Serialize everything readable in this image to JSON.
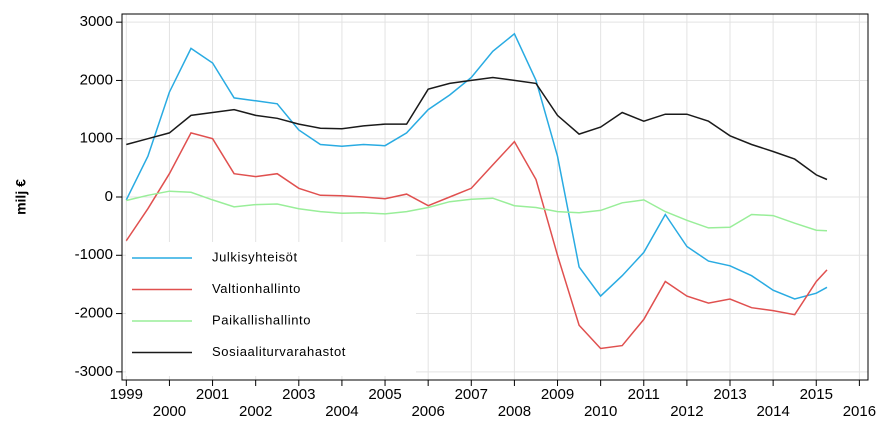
{
  "chart_data": {
    "type": "line",
    "ylabel": "milj €",
    "x": [
      1999,
      1999.5,
      2000,
      2000.5,
      2001,
      2001.5,
      2002,
      2002.5,
      2003,
      2003.5,
      2004,
      2004.5,
      2005,
      2005.5,
      2006,
      2006.5,
      2007,
      2007.5,
      2008,
      2008.5,
      2009,
      2009.5,
      2010,
      2010.5,
      2011,
      2011.5,
      2012,
      2012.5,
      2013,
      2013.5,
      2014,
      2014.5,
      2015,
      2015.25
    ],
    "series": [
      {
        "name": "Julkisyhteisöt",
        "color": "#29abe2",
        "values": [
          -50,
          700,
          1800,
          2550,
          2300,
          1700,
          1650,
          1600,
          1150,
          900,
          870,
          900,
          880,
          1100,
          1500,
          1750,
          2050,
          2500,
          2800,
          2000,
          700,
          -1200,
          -1700,
          -1350,
          -950,
          -300,
          -850,
          -1100,
          -1180,
          -1350,
          -1600,
          -1750,
          -1650,
          -1550
        ]
      },
      {
        "name": "Valtionhallinto",
        "color": "#e0504f",
        "values": [
          -750,
          -200,
          400,
          1100,
          1000,
          400,
          350,
          400,
          150,
          30,
          20,
          0,
          -30,
          50,
          -150,
          0,
          150,
          550,
          950,
          300,
          -1000,
          -2200,
          -2600,
          -2550,
          -2100,
          -1450,
          -1700,
          -1820,
          -1750,
          -1900,
          -1950,
          -2020,
          -1450,
          -1250
        ]
      },
      {
        "name": "Paikallishallinto",
        "color": "#99ee99",
        "values": [
          -60,
          30,
          100,
          80,
          -50,
          -170,
          -130,
          -120,
          -200,
          -250,
          -280,
          -270,
          -290,
          -250,
          -180,
          -80,
          -40,
          -20,
          -150,
          -180,
          -250,
          -270,
          -230,
          -100,
          -50,
          -250,
          -400,
          -530,
          -520,
          -300,
          -320,
          -450,
          -570,
          -580
        ]
      },
      {
        "name": "Sosiaaliturvarahastot",
        "color": "#1a1a1a",
        "values": [
          900,
          1000,
          1100,
          1400,
          1450,
          1500,
          1400,
          1350,
          1250,
          1180,
          1170,
          1220,
          1250,
          1250,
          1850,
          1950,
          2000,
          2050,
          2000,
          1950,
          1400,
          1080,
          1200,
          1450,
          1300,
          1420,
          1420,
          1300,
          1050,
          900,
          780,
          650,
          380,
          300
        ]
      }
    ],
    "xlim": [
      1998.9,
      2016.2
    ],
    "xticks": [
      1999,
      2000,
      2001,
      2002,
      2003,
      2004,
      2005,
      2006,
      2007,
      2008,
      2009,
      2010,
      2011,
      2012,
      2013,
      2014,
      2015,
      2016
    ],
    "ylim": [
      -3140,
      3140
    ],
    "yticks": [
      -3000,
      -2000,
      -1000,
      0,
      1000,
      2000,
      3000
    ],
    "grid": true,
    "legend": "lower left"
  }
}
